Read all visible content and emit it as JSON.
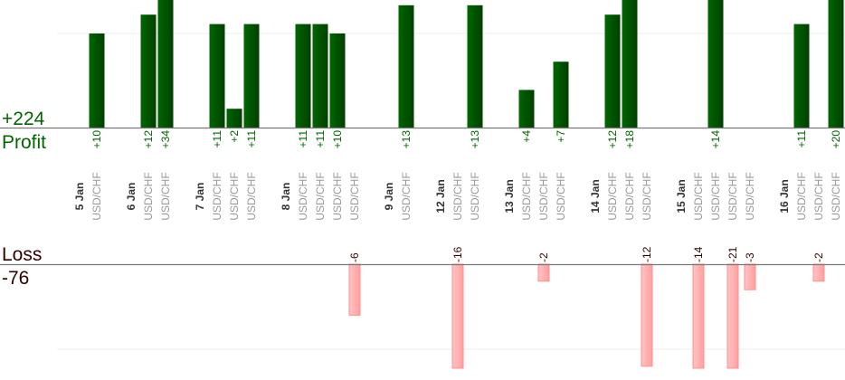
{
  "summary": {
    "profit_total": "+224",
    "profit_label": "Profit",
    "loss_label": "Loss",
    "loss_total": "-76"
  },
  "colors": {
    "profit": "#006600",
    "profit_dark": "#004000",
    "loss_fill_light": "#ffc4c4",
    "loss_fill": "#ff9e9e",
    "loss_border": "#ff8f8f",
    "loss_text": "#330000",
    "date_text": "#333333",
    "pair_text": "#999999"
  },
  "chart_data": {
    "type": "bar",
    "grid": true,
    "profit_gridline": 10,
    "loss_gridline": -10,
    "days": [
      {
        "date": "5 Jan",
        "trades": [
          {
            "pair": "USD/CHF",
            "value": 10,
            "label": "+10"
          }
        ]
      },
      {
        "date": "6 Jan",
        "trades": [
          {
            "pair": "USD/CHF",
            "value": 12,
            "label": "+12"
          },
          {
            "pair": "USD/CHF",
            "value": 34,
            "label": "+34"
          }
        ]
      },
      {
        "date": "7 Jan",
        "trades": [
          {
            "pair": "USD/CHF",
            "value": 11,
            "label": "+11"
          },
          {
            "pair": "USD/CHF",
            "value": 2,
            "label": "+2"
          },
          {
            "pair": "USD/CHF",
            "value": 11,
            "label": "+11"
          }
        ]
      },
      {
        "date": "8 Jan",
        "trades": [
          {
            "pair": "USD/CHF",
            "value": 11,
            "label": "+11"
          },
          {
            "pair": "USD/CHF",
            "value": 11,
            "label": "+11"
          },
          {
            "pair": "USD/CHF",
            "value": 10,
            "label": "+10"
          },
          {
            "pair": "USD/CHF",
            "value": -6,
            "label": "-6"
          }
        ]
      },
      {
        "date": "9 Jan",
        "trades": [
          {
            "pair": "USD/CHF",
            "value": 13,
            "label": "+13"
          }
        ]
      },
      {
        "date": "12 Jan",
        "trades": [
          {
            "pair": "USD/CHF",
            "value": -16,
            "label": "-16"
          },
          {
            "pair": "USD/CHF",
            "value": 13,
            "label": "+13"
          }
        ]
      },
      {
        "date": "13 Jan",
        "trades": [
          {
            "pair": "USD/CHF",
            "value": 4,
            "label": "+4"
          },
          {
            "pair": "USD/CHF",
            "value": -2,
            "label": "-2"
          },
          {
            "pair": "USD/CHF",
            "value": 7,
            "label": "+7"
          }
        ]
      },
      {
        "date": "14 Jan",
        "trades": [
          {
            "pair": "USD/CHF",
            "value": 12,
            "label": "+12"
          },
          {
            "pair": "USD/CHF",
            "value": 18,
            "label": "+18"
          },
          {
            "pair": "USD/CHF",
            "value": -12,
            "label": "-12"
          }
        ]
      },
      {
        "date": "15 Jan",
        "trades": [
          {
            "pair": "USD/CHF",
            "value": -14,
            "label": "-14"
          },
          {
            "pair": "USD/CHF",
            "value": 14,
            "label": "+14"
          },
          {
            "pair": "USD/CHF",
            "value": -21,
            "label": "-21"
          },
          {
            "pair": "USD/CHF",
            "value": -3,
            "label": "-3"
          }
        ]
      },
      {
        "date": "16 Jan",
        "trades": [
          {
            "pair": "USD/CHF",
            "value": 11,
            "label": "+11"
          },
          {
            "pair": "USD/CHF",
            "value": -2,
            "label": "-2"
          },
          {
            "pair": "USD/CHF",
            "value": 20,
            "label": "+20"
          }
        ]
      }
    ]
  }
}
